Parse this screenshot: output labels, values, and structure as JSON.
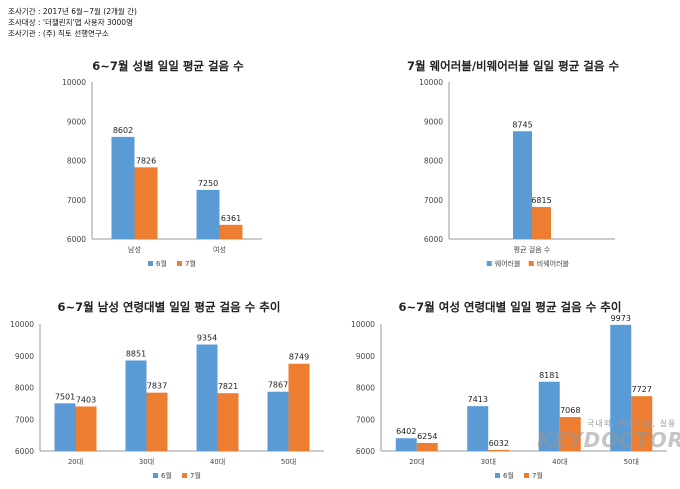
{
  "survey_info": [
    "조사기간 : 2017년 6월~7월 (2개월 간)",
    "조사대상 : '더챌린지'앱 사용자 3000명",
    "조사기관 : (주) 직토 선행연구소"
  ],
  "watermark": {
    "sub": "국내외, 의료학술, 실용 헬스지",
    "main": "KEYDOCTOR"
  },
  "colors": {
    "june": "#5b9bd5",
    "july": "#ed7d31",
    "wearable": "#5b9bd5",
    "non_wearable": "#ed7d31"
  },
  "chart_data": [
    {
      "type": "bar",
      "title": "6~7월 성별 일일 평균 걸음 수",
      "categories": [
        "남성",
        "여성"
      ],
      "series": [
        {
          "name": "6월",
          "values": [
            8602,
            7250
          ]
        },
        {
          "name": "7월",
          "values": [
            7826,
            6361
          ]
        }
      ],
      "yticks": [
        "6000",
        "7000",
        "8000",
        "9000",
        "10000"
      ],
      "ylim": [
        6000,
        10000
      ],
      "legend": "bottom",
      "grid": false
    },
    {
      "type": "bar",
      "title": "7월 웨어러블/비웨어러블 일일 평균 걸음 수",
      "categories": [
        "평균 걸음 수"
      ],
      "series": [
        {
          "name": "웨어러블",
          "values": [
            8745
          ]
        },
        {
          "name": "비웨어러블",
          "values": [
            6815
          ]
        }
      ],
      "yticks": [
        "6000",
        "7000",
        "8000",
        "9000",
        "10000"
      ],
      "ylim": [
        6000,
        10000
      ],
      "legend": "bottom",
      "grid": false
    },
    {
      "type": "bar",
      "title": "6~7월 남성 연령대별 일일 평균 걸음 수 추이",
      "categories": [
        "20대",
        "30대",
        "40대",
        "50대"
      ],
      "series": [
        {
          "name": "6월",
          "values": [
            7501,
            8851,
            9354,
            7867
          ]
        },
        {
          "name": "7월",
          "values": [
            7403,
            7837,
            7821,
            8749
          ]
        }
      ],
      "yticks": [
        "6000",
        "7000",
        "8000",
        "9000",
        "10000"
      ],
      "ylim": [
        6000,
        10000
      ],
      "legend": "bottom",
      "grid": false
    },
    {
      "type": "bar",
      "title": "6~7월 여성 연령대별 일일 평균 걸음 수 추이",
      "categories": [
        "20대",
        "30대",
        "40대",
        "50대"
      ],
      "series": [
        {
          "name": "6월",
          "values": [
            6402,
            7413,
            8181,
            9973
          ]
        },
        {
          "name": "7월",
          "values": [
            6254,
            6032,
            7068,
            7727
          ]
        }
      ],
      "yticks": [
        "6000",
        "7000",
        "8000",
        "9000",
        "10000"
      ],
      "ylim": [
        6000,
        10000
      ],
      "legend": "bottom",
      "grid": false
    }
  ]
}
